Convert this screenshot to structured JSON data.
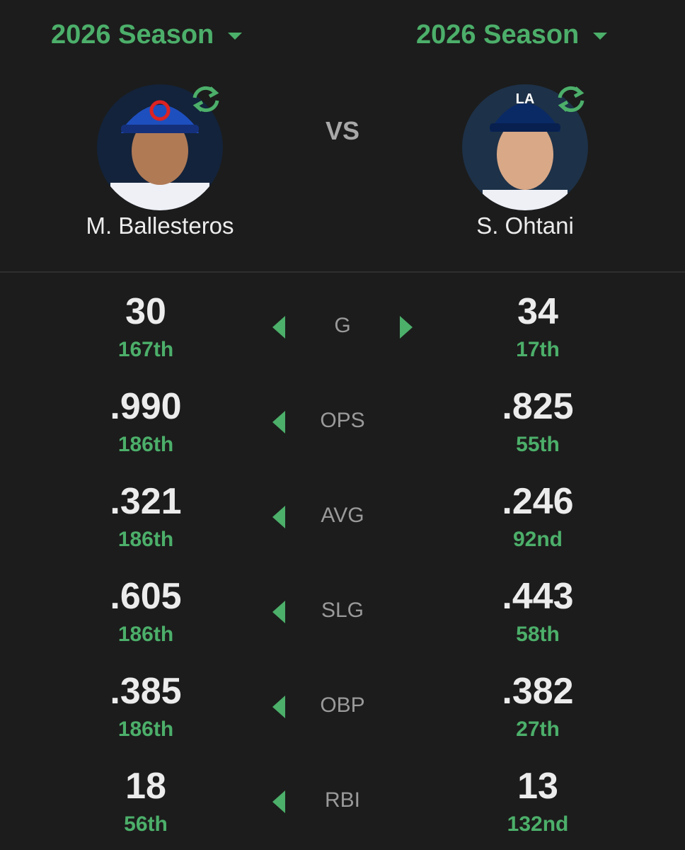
{
  "players": [
    {
      "season": "2026 Season",
      "name": "M. Ballesteros"
    },
    {
      "season": "2026 Season",
      "name": "S. Ohtani"
    }
  ],
  "versus": "VS",
  "stats": [
    {
      "label": "G",
      "left": {
        "value": "30",
        "rank": "167th"
      },
      "right": {
        "value": "34",
        "rank": "17th"
      }
    },
    {
      "label": "OPS",
      "left": {
        "value": ".990",
        "rank": "186th"
      },
      "right": {
        "value": ".825",
        "rank": "55th"
      }
    },
    {
      "label": "AVG",
      "left": {
        "value": ".321",
        "rank": "186th"
      },
      "right": {
        "value": ".246",
        "rank": "92nd"
      }
    },
    {
      "label": "SLG",
      "left": {
        "value": ".605",
        "rank": "186th"
      },
      "right": {
        "value": ".443",
        "rank": "58th"
      }
    },
    {
      "label": "OBP",
      "left": {
        "value": ".385",
        "rank": "186th"
      },
      "right": {
        "value": ".382",
        "rank": "27th"
      }
    },
    {
      "label": "RBI",
      "left": {
        "value": "18",
        "rank": "56th"
      },
      "right": {
        "value": "13",
        "rank": "132nd"
      }
    }
  ]
}
